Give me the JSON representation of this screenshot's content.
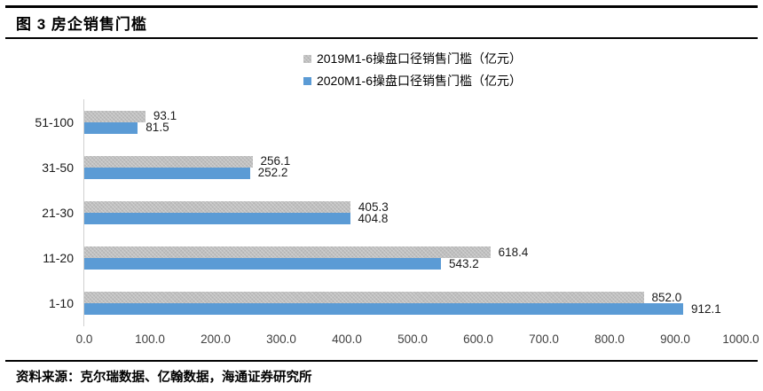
{
  "header": {
    "title": "图 3 房企销售门槛"
  },
  "footer": {
    "source": "资料来源：克尔瑞数据、亿翰数据，海通证券研究所"
  },
  "colors": {
    "series_2019": "#bfbfbf",
    "series_2020": "#5b9bd5",
    "axis_line": "#d0d0d0",
    "rule": "#000000"
  },
  "chart_data": {
    "type": "bar",
    "orientation": "horizontal",
    "title": "图 3 房企销售门槛",
    "categories": [
      "51-100",
      "31-50",
      "21-30",
      "11-20",
      "1-10"
    ],
    "series": [
      {
        "name": "2019M1-6操盘口径销售门槛（亿元）",
        "color": "#bfbfbf",
        "textured": true,
        "values": [
          93.1,
          256.1,
          405.3,
          618.4,
          852.0
        ]
      },
      {
        "name": "2020M1-6操盘口径销售门槛（亿元）",
        "color": "#5b9bd5",
        "textured": false,
        "values": [
          81.5,
          252.2,
          404.8,
          543.2,
          912.1
        ]
      }
    ],
    "xlim": [
      0,
      1000
    ],
    "x_ticks": [
      "0.0",
      "100.0",
      "200.0",
      "300.0",
      "400.0",
      "500.0",
      "600.0",
      "700.0",
      "800.0",
      "900.0",
      "1000.0"
    ],
    "value_label_decimals": 1,
    "legend_position": "top",
    "grid": false
  }
}
